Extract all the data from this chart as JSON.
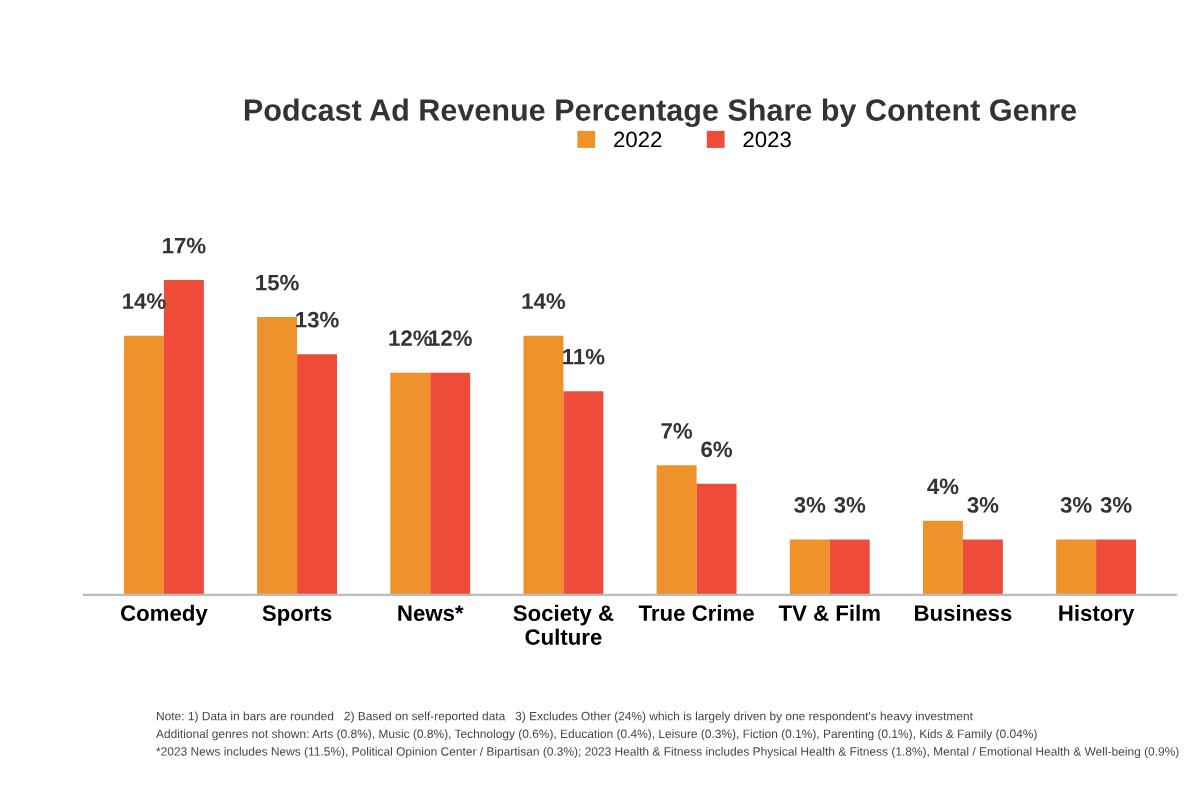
{
  "chart_data": {
    "type": "bar",
    "title": "Podcast Ad Revenue Percentage Share by Content Genre",
    "categories": [
      "Comedy",
      "Sports",
      "News*",
      "Society &\nCulture",
      "True Crime",
      "TV & Film",
      "Business",
      "History"
    ],
    "series": [
      {
        "name": "2022",
        "color": "#f0922b",
        "values": [
          14,
          15,
          12,
          14,
          7,
          3,
          4,
          3
        ],
        "value_labels": [
          "14%",
          "15%",
          "12%",
          "14%",
          "7%",
          "3%",
          "4%",
          "3%"
        ]
      },
      {
        "name": "2023",
        "color": "#ef4b3b",
        "values": [
          17,
          13,
          12,
          11,
          6,
          3,
          3,
          3
        ],
        "value_labels": [
          "17%",
          "13%",
          "12%",
          "11%",
          "6%",
          "3%",
          "3%",
          "3%"
        ]
      }
    ],
    "legend": "top",
    "grid": false,
    "tick_labels": "x",
    "annotations": [
      "Note: 1) Data in bars are rounded   2) Based on self-reported data   3) Excludes Other (24%) which is largely driven by one respondent's heavy investment",
      "Additional genres not shown: Arts (0.8%), Music (0.8%), Technology (0.6%), Education (0.4%), Leisure (0.3%), Fiction (0.1%), Parenting (0.1%), Kids & Family (0.04%)",
      "*2023 News includes News (11.5%), Political Opinion Center / Bipartisan (0.3%); 2023 Health & Fitness includes Physical Health & Fitness (1.8%), Mental / Emotional Health & Well-being (0.9%)"
    ]
  }
}
